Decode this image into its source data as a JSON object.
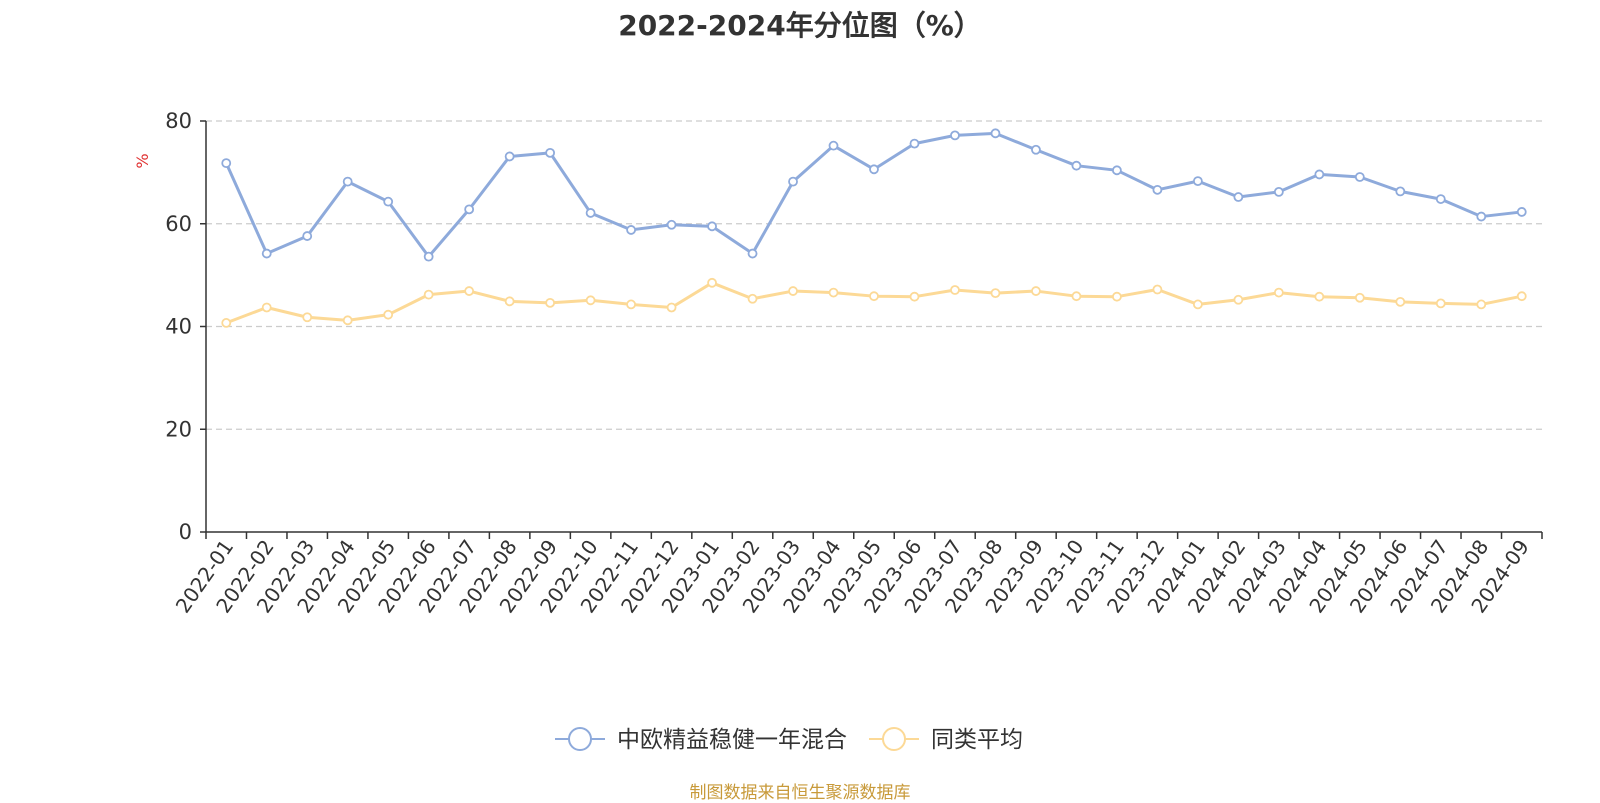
{
  "chart_data": {
    "type": "line",
    "title": "2022-2024年分位图（%）",
    "ylabel": "%",
    "ylim": [
      0,
      80
    ],
    "yticks": [
      0,
      20,
      40,
      60,
      80
    ],
    "grid": true,
    "legend_position": "bottom",
    "categories": [
      "2022-01",
      "2022-02",
      "2022-03",
      "2022-04",
      "2022-05",
      "2022-06",
      "2022-07",
      "2022-08",
      "2022-09",
      "2022-10",
      "2022-11",
      "2022-12",
      "2023-01",
      "2023-02",
      "2023-03",
      "2023-04",
      "2023-05",
      "2023-06",
      "2023-07",
      "2023-08",
      "2023-09",
      "2023-10",
      "2023-11",
      "2023-12",
      "2024-01",
      "2024-02",
      "2024-03",
      "2024-04",
      "2024-05",
      "2024-06",
      "2024-07",
      "2024-08",
      "2024-09"
    ],
    "series": [
      {
        "name": "中欧精益稳健一年混合",
        "color": "#8eaadb",
        "values": [
          71.8,
          54.2,
          57.6,
          68.2,
          64.3,
          53.6,
          62.8,
          73.1,
          73.8,
          62.1,
          58.8,
          59.8,
          59.5,
          54.2,
          68.2,
          75.2,
          70.6,
          75.6,
          77.2,
          77.6,
          74.4,
          71.3,
          70.4,
          66.6,
          68.3,
          65.2,
          66.2,
          69.6,
          69.1,
          66.3,
          64.8,
          61.4,
          62.3
        ]
      },
      {
        "name": "同类平均",
        "color": "#fcd996",
        "values": [
          40.7,
          43.7,
          41.8,
          41.2,
          42.3,
          46.2,
          46.9,
          44.9,
          44.6,
          45.1,
          44.3,
          43.7,
          48.5,
          45.4,
          46.9,
          46.6,
          45.9,
          45.8,
          47.1,
          46.5,
          46.9,
          45.9,
          45.8,
          47.2,
          44.3,
          45.2,
          46.6,
          45.8,
          45.6,
          44.8,
          44.5,
          44.3,
          45.9
        ]
      }
    ]
  },
  "source_text": "制图数据来自恒生聚源数据库"
}
